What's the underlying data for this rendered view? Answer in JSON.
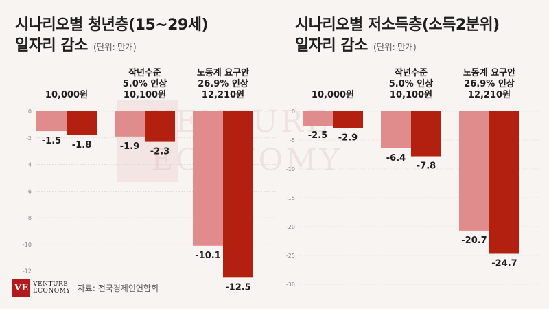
{
  "titles": {
    "left_line1": "시나리오별 청년층(15~29세)",
    "left_line2": "일자리 감소",
    "right_line1": "시나리오별 저소득층(소득2분위)",
    "right_line2": "일자리 감소",
    "unit": "(단위: 만개)"
  },
  "footer": {
    "logo_mark": "VE",
    "logo_line1": "VENTURE",
    "logo_line2": "ECONOMY",
    "source": "자료: 전국경제인연합회"
  },
  "watermark": {
    "line1": "VENTURE",
    "line2": "ECONOMY"
  },
  "colors": {
    "light": "#e08c8c",
    "dark": "#b3200f",
    "background": "#f7f4f2"
  },
  "chart_data": [
    {
      "type": "bar",
      "categories": [
        [
          "10,000원"
        ],
        [
          "작년수준",
          "5.0% 인상",
          "10,100원"
        ],
        [
          "노동계 요구안",
          "26.9% 인상",
          "12,210원"
        ]
      ],
      "series": [
        {
          "values": [
            -1.5,
            -1.9,
            -10.1
          ]
        },
        {
          "values": [
            -1.8,
            -2.3,
            -12.5
          ]
        }
      ],
      "yticks": [
        0,
        -2,
        -4,
        -6,
        -8,
        -10,
        -12
      ],
      "ylim": [
        -13,
        0
      ]
    },
    {
      "type": "bar",
      "categories": [
        [
          "10,000원"
        ],
        [
          "작년수준",
          "5.0% 인상",
          "10,100원"
        ],
        [
          "노동계 요구안",
          "26.9% 인상",
          "12,210원"
        ]
      ],
      "series": [
        {
          "values": [
            -2.5,
            -6.4,
            -20.7
          ]
        },
        {
          "values": [
            -2.9,
            -7.8,
            -24.7
          ]
        }
      ],
      "yticks": [
        0,
        -5,
        -10,
        -15,
        -20,
        -25,
        -30
      ],
      "ylim": [
        -30,
        0
      ]
    }
  ]
}
